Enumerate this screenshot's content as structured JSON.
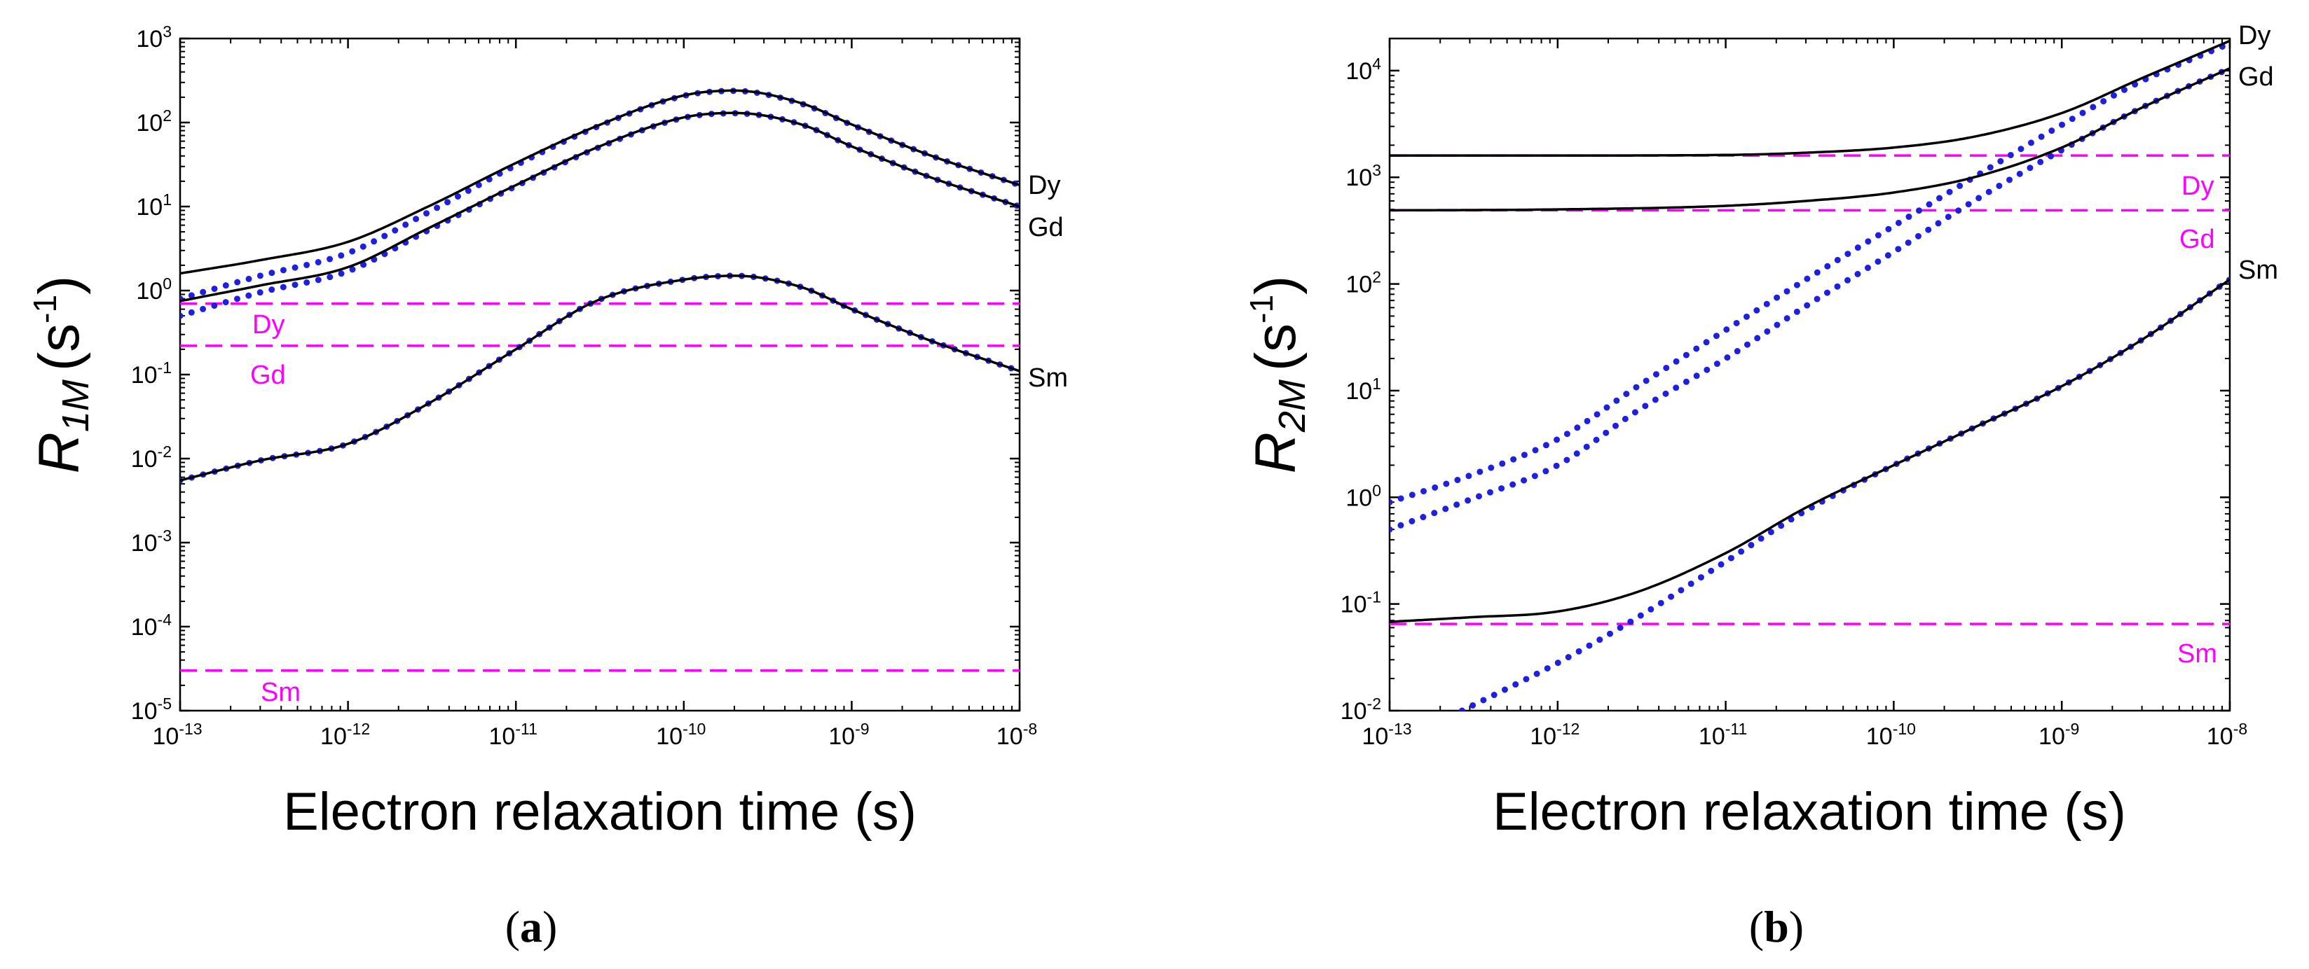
{
  "chart_data": [
    {
      "type": "line",
      "panel": "a",
      "caption": "a",
      "xscale": "log",
      "yscale": "log",
      "xlim": [
        1e-13,
        1e-08
      ],
      "ylim": [
        1e-05,
        1000
      ],
      "xlabel": "Electron relaxation time (s)",
      "ylabel_main": "R",
      "ylabel_sub": "1M",
      "ylabel_unit_open": "(s",
      "ylabel_unit_sup": "-1",
      "ylabel_unit_close": ")",
      "xticks": [
        {
          "base": "10",
          "exp": "-13"
        },
        {
          "base": "10",
          "exp": "-12"
        },
        {
          "base": "10",
          "exp": "-11"
        },
        {
          "base": "10",
          "exp": "-10"
        },
        {
          "base": "10",
          "exp": "-9"
        },
        {
          "base": "10",
          "exp": "-8"
        }
      ],
      "yticks": [
        {
          "base": "10",
          "exp": "-5"
        },
        {
          "base": "10",
          "exp": "-4"
        },
        {
          "base": "10",
          "exp": "-3"
        },
        {
          "base": "10",
          "exp": "-2"
        },
        {
          "base": "10",
          "exp": "-1"
        },
        {
          "base": "10",
          "exp": "0"
        },
        {
          "base": "10",
          "exp": "1"
        },
        {
          "base": "10",
          "exp": "2"
        },
        {
          "base": "10",
          "exp": "3"
        }
      ],
      "series": [
        {
          "name": "Dy",
          "label": "Dy",
          "style": "solid",
          "color": "#000000",
          "x": [
            1e-13,
            3e-13,
            1e-12,
            3e-12,
            1e-11,
            3e-11,
            1e-10,
            2e-10,
            5e-10,
            1e-09,
            3e-09,
            1e-08
          ],
          "y": [
            1.6,
            2.3,
            3.8,
            10,
            33,
            90,
            210,
            240,
            170,
            95,
            40,
            18
          ]
        },
        {
          "name": "Dy",
          "label": "",
          "style": "dotted",
          "color": "#1f1fe0",
          "x": [
            1e-13,
            3e-13,
            1e-12,
            3e-12,
            1e-11,
            3e-11,
            1e-10,
            2e-10,
            5e-10,
            1e-09,
            3e-09,
            1e-08
          ],
          "y": [
            0.8,
            1.5,
            2.8,
            8.5,
            31,
            88,
            208,
            238,
            168,
            94,
            40,
            18
          ]
        },
        {
          "name": "Gd",
          "label": "Gd",
          "style": "solid",
          "color": "#000000",
          "x": [
            1e-13,
            3e-13,
            1e-12,
            3e-12,
            1e-11,
            3e-11,
            1e-10,
            2e-10,
            5e-10,
            1e-09,
            3e-09,
            1e-08
          ],
          "y": [
            0.75,
            1.15,
            1.9,
            5.5,
            18,
            50,
            115,
            130,
            95,
            52,
            22,
            10
          ]
        },
        {
          "name": "Gd",
          "label": "",
          "style": "dotted",
          "color": "#1f1fe0",
          "x": [
            1e-13,
            3e-13,
            1e-12,
            3e-12,
            1e-11,
            3e-11,
            1e-10,
            2e-10,
            5e-10,
            1e-09,
            3e-09,
            1e-08
          ],
          "y": [
            0.5,
            0.95,
            1.7,
            5.2,
            17.5,
            49,
            114,
            129,
            95,
            52,
            22,
            10
          ]
        },
        {
          "name": "Sm",
          "label": "Sm",
          "style": "solid",
          "color": "#000000",
          "x": [
            1e-13,
            3e-13,
            1e-12,
            3e-12,
            1e-11,
            3e-11,
            1e-10,
            2e-10,
            5e-10,
            1e-09,
            3e-09,
            1e-08
          ],
          "y": [
            0.0055,
            0.0095,
            0.015,
            0.045,
            0.2,
            0.75,
            1.35,
            1.5,
            1.1,
            0.6,
            0.25,
            0.11
          ]
        },
        {
          "name": "Sm",
          "label": "",
          "style": "dotted",
          "color": "#1f1fe0",
          "x": [
            1e-13,
            3e-13,
            1e-12,
            3e-12,
            1e-11,
            3e-11,
            1e-10,
            2e-10,
            5e-10,
            1e-09,
            3e-09,
            1e-08
          ],
          "y": [
            0.0055,
            0.0095,
            0.015,
            0.045,
            0.2,
            0.75,
            1.35,
            1.5,
            1.1,
            0.6,
            0.25,
            0.11
          ]
        }
      ],
      "reference_lines": [
        {
          "label": "Dy",
          "y": 0.7,
          "color": "#ff00ff"
        },
        {
          "label": "Gd",
          "y": 0.22,
          "color": "#ff00ff"
        },
        {
          "label": "Sm",
          "y": 3e-05,
          "color": "#ff00ff"
        }
      ]
    },
    {
      "type": "line",
      "panel": "b",
      "caption": "b",
      "xscale": "log",
      "yscale": "log",
      "xlim": [
        1e-13,
        1e-08
      ],
      "ylim": [
        0.01,
        20000
      ],
      "xlabel": "Electron relaxation time (s)",
      "ylabel_main": "R",
      "ylabel_sub": "2M",
      "ylabel_unit_open": "(s",
      "ylabel_unit_sup": "-1",
      "ylabel_unit_close": ")",
      "xticks": [
        {
          "base": "10",
          "exp": "-13"
        },
        {
          "base": "10",
          "exp": "-12"
        },
        {
          "base": "10",
          "exp": "-11"
        },
        {
          "base": "10",
          "exp": "-10"
        },
        {
          "base": "10",
          "exp": "-9"
        },
        {
          "base": "10",
          "exp": "-8"
        }
      ],
      "yticks": [
        {
          "base": "10",
          "exp": "-2"
        },
        {
          "base": "10",
          "exp": "-1"
        },
        {
          "base": "10",
          "exp": "0"
        },
        {
          "base": "10",
          "exp": "1"
        },
        {
          "base": "10",
          "exp": "2"
        },
        {
          "base": "10",
          "exp": "3"
        },
        {
          "base": "10",
          "exp": "4"
        }
      ],
      "series": [
        {
          "name": "Dy",
          "label": "Dy",
          "style": "solid",
          "color": "#000000",
          "x": [
            1e-13,
            1e-12,
            1e-11,
            3e-11,
            1e-10,
            3e-10,
            1e-09,
            3e-09,
            1e-08
          ],
          "y": [
            1600,
            1600,
            1620,
            1700,
            1900,
            2400,
            4000,
            8500,
            19000
          ]
        },
        {
          "name": "Dy",
          "label": "",
          "style": "dotted",
          "color": "#1f1fe0",
          "x": [
            1e-13,
            3e-13,
            1e-12,
            3e-12,
            1e-11,
            3e-11,
            1e-10,
            3e-10,
            1e-09,
            3e-09,
            1e-08
          ],
          "y": [
            0.9,
            1.6,
            3.5,
            11,
            37,
            110,
            350,
            1000,
            3100,
            8000,
            18000
          ]
        },
        {
          "name": "Gd",
          "label": "Gd",
          "style": "solid",
          "color": "#000000",
          "x": [
            1e-13,
            1e-12,
            1e-11,
            3e-11,
            1e-10,
            3e-10,
            1e-09,
            3e-09,
            1e-08
          ],
          "y": [
            490,
            500,
            540,
            600,
            720,
            1000,
            1900,
            4500,
            10500
          ]
        },
        {
          "name": "Gd",
          "label": "",
          "style": "dotted",
          "color": "#1f1fe0",
          "x": [
            1e-13,
            3e-13,
            1e-12,
            3e-12,
            1e-11,
            3e-11,
            1e-10,
            3e-10,
            1e-09,
            3e-09,
            1e-08
          ],
          "y": [
            0.5,
            0.95,
            2,
            6.5,
            20,
            62,
            200,
            600,
            1800,
            4500,
            10500
          ]
        },
        {
          "name": "Sm",
          "label": "Sm",
          "style": "solid",
          "color": "#000000",
          "x": [
            1e-13,
            3e-13,
            1e-12,
            3e-12,
            1e-11,
            3e-11,
            1e-10,
            3e-10,
            1e-09,
            3e-09,
            1e-08
          ],
          "y": [
            0.068,
            0.075,
            0.085,
            0.13,
            0.3,
            0.8,
            2,
            4.5,
            11,
            30,
            110
          ]
        },
        {
          "name": "Sm",
          "label": "",
          "style": "dotted",
          "color": "#1f1fe0",
          "x": [
            2.7e-13,
            1e-12,
            3e-12,
            1e-11,
            3e-11,
            1e-10,
            3e-10,
            1e-09,
            3e-09,
            1e-08
          ],
          "y": [
            0.01,
            0.028,
            0.075,
            0.25,
            0.75,
            2,
            4.5,
            11,
            30,
            110
          ]
        }
      ],
      "reference_lines": [
        {
          "label": "Dy",
          "y": 1600,
          "color": "#ff00ff"
        },
        {
          "label": "Gd",
          "y": 490,
          "color": "#ff00ff"
        },
        {
          "label": "Sm",
          "y": 0.065,
          "color": "#ff00ff"
        }
      ]
    }
  ]
}
